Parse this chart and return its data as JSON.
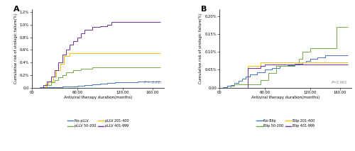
{
  "panel_A": {
    "title": "A",
    "xlabel": "Antiviral therapy duration(months)",
    "ylabel": "Cumulative risk of virologic failure(%)",
    "xlim": [
      0,
      175
    ],
    "ylim": [
      0,
      1.25
    ],
    "xticks": [
      0,
      60,
      120,
      160
    ],
    "xticklabels": [
      "00",
      "60.00",
      "120.00",
      "160.00"
    ],
    "yticks": [
      0.0,
      0.2,
      0.4,
      0.6,
      0.8,
      1.0,
      1.2
    ],
    "yticklabels": [
      "0.0",
      "0.2%",
      "0.4%",
      "0.6%",
      "0.8%",
      "1.0%",
      "1.2%"
    ],
    "pvalue": "P < 0.01",
    "series": [
      {
        "label": "No pLLV",
        "color": "#4472C4",
        "x": [
          0,
          10,
          15,
          20,
          25,
          30,
          40,
          50,
          60,
          70,
          80,
          90,
          100,
          110,
          120,
          130,
          140,
          150,
          160,
          170
        ],
        "y": [
          0,
          0.002,
          0.004,
          0.006,
          0.008,
          0.01,
          0.015,
          0.02,
          0.03,
          0.04,
          0.05,
          0.06,
          0.07,
          0.08,
          0.09,
          0.09,
          0.1,
          0.1,
          0.1,
          0.1
        ]
      },
      {
        "label": "pLLV 50-200",
        "color": "#70AD47",
        "x": [
          0,
          20,
          25,
          30,
          35,
          40,
          45,
          55,
          65,
          80,
          100,
          130,
          170
        ],
        "y": [
          0,
          0.04,
          0.08,
          0.12,
          0.16,
          0.2,
          0.24,
          0.28,
          0.3,
          0.32,
          0.32,
          0.32,
          0.32
        ]
      },
      {
        "label": "pLLV 201-400",
        "color": "#FFC000",
        "x": [
          0,
          18,
          22,
          28,
          32,
          38,
          42,
          50,
          60,
          170
        ],
        "y": [
          0,
          0.05,
          0.1,
          0.18,
          0.28,
          0.38,
          0.5,
          0.55,
          0.55,
          0.55
        ]
      },
      {
        "label": "pLLV 401-999",
        "color": "#7030A0",
        "x": [
          0,
          15,
          20,
          25,
          30,
          35,
          40,
          45,
          50,
          55,
          60,
          65,
          70,
          80,
          90,
          100,
          105,
          130,
          170
        ],
        "y": [
          0,
          0.04,
          0.1,
          0.18,
          0.28,
          0.4,
          0.52,
          0.6,
          0.68,
          0.74,
          0.8,
          0.86,
          0.92,
          0.96,
          0.98,
          1.0,
          1.05,
          1.05,
          1.05
        ]
      }
    ]
  },
  "panel_B": {
    "title": "B",
    "xlabel": "Antiviral therapy duration(months)",
    "ylabel": "Cumulative risk of virologic failure(%)",
    "xlim": [
      0,
      175
    ],
    "ylim": [
      0,
      0.22
    ],
    "xticks": [
      0,
      60,
      120,
      160
    ],
    "xticklabels": [
      "00",
      "60.00",
      "120.00",
      "160.00"
    ],
    "yticks": [
      0.0,
      0.05,
      0.1,
      0.15,
      0.2
    ],
    "yticklabels": [
      "0.00",
      "0.05%",
      "0.10%",
      "0.15%",
      "0.20%"
    ],
    "pvalue": "P=0.961",
    "series": [
      {
        "label": "No Blip",
        "color": "#4472C4",
        "x": [
          0,
          5,
          10,
          15,
          20,
          25,
          30,
          35,
          40,
          50,
          60,
          70,
          80,
          90,
          100,
          110,
          115,
          120,
          130,
          140,
          150,
          160,
          170
        ],
        "y": [
          0,
          0.002,
          0.005,
          0.008,
          0.012,
          0.018,
          0.024,
          0.03,
          0.036,
          0.043,
          0.05,
          0.055,
          0.06,
          0.063,
          0.066,
          0.07,
          0.075,
          0.08,
          0.085,
          0.09,
          0.09,
          0.09,
          0.09
        ]
      },
      {
        "label": "Blip 50-200",
        "color": "#70AD47",
        "x": [
          0,
          15,
          20,
          45,
          55,
          65,
          75,
          100,
          105,
          110,
          120,
          150,
          155,
          170
        ],
        "y": [
          0,
          0.005,
          0.01,
          0.01,
          0.02,
          0.04,
          0.06,
          0.065,
          0.08,
          0.1,
          0.11,
          0.11,
          0.17,
          0.17
        ]
      },
      {
        "label": "Blip 201-400",
        "color": "#FFC000",
        "x": [
          0,
          35,
          38,
          55,
          170
        ],
        "y": [
          0,
          0.0,
          0.06,
          0.07,
          0.07
        ]
      },
      {
        "label": "Blip 401-999",
        "color": "#7030A0",
        "x": [
          0,
          35,
          38,
          55,
          60,
          170
        ],
        "y": [
          0,
          0.0,
          0.055,
          0.06,
          0.065,
          0.065
        ]
      }
    ]
  },
  "legend_A": [
    {
      "label": "No pLLV",
      "color": "#4472C4"
    },
    {
      "label": "pLLV 50-200",
      "color": "#70AD47"
    },
    {
      "label": "pLLV 201-400",
      "color": "#FFC000"
    },
    {
      "label": "pLLV 401-999",
      "color": "#7030A0"
    }
  ],
  "legend_B": [
    {
      "label": "No Blip",
      "color": "#4472C4"
    },
    {
      "label": "Blip 50-200",
      "color": "#70AD47"
    },
    {
      "label": "Blip 201-400",
      "color": "#FFC000"
    },
    {
      "label": "Blip 401-999",
      "color": "#7030A0"
    }
  ]
}
